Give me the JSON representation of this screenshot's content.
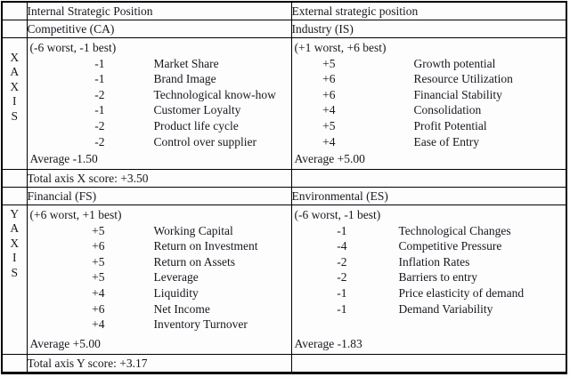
{
  "colors": {
    "border": "#000000",
    "text": "#17171f",
    "background": "#fdfdfd"
  },
  "headers": {
    "internal": "Internal Strategic Position",
    "external": "External strategic position"
  },
  "x_axis": {
    "letters": [
      "X",
      "A",
      "X",
      "I",
      "S"
    ],
    "internal": {
      "name": "Competitive (CA)",
      "scale": "(-6 worst, -1 best)",
      "items": [
        {
          "value": "-1",
          "label": "Market Share"
        },
        {
          "value": "-1",
          "label": "Brand Image"
        },
        {
          "value": "-2",
          "label": "Technological know-how"
        },
        {
          "value": "-1",
          "label": "Customer Loyalty"
        },
        {
          "value": "-2",
          "label": "Product life cycle"
        },
        {
          "value": "-2",
          "label": "Control over supplier"
        }
      ],
      "average": "Average -1.50"
    },
    "external": {
      "name": "Industry (IS)",
      "scale": "(+1 worst, +6 best)",
      "items": [
        {
          "value": "+5",
          "label": "Growth potential"
        },
        {
          "value": "+6",
          "label": "Resource Utilization"
        },
        {
          "value": "+6",
          "label": "Financial Stability"
        },
        {
          "value": "+4",
          "label": "Consolidation"
        },
        {
          "value": "+5",
          "label": "Profit Potential"
        },
        {
          "value": "+4",
          "label": "Ease of Entry"
        }
      ],
      "average": "Average +5.00"
    },
    "total": "Total axis X score: +3.50"
  },
  "y_axis": {
    "letters": [
      "Y",
      "A",
      "X",
      "I",
      "S"
    ],
    "internal": {
      "name": "Financial (FS)",
      "scale": "(+6 worst, +1 best)",
      "items": [
        {
          "value": "+5",
          "label": "Working Capital"
        },
        {
          "value": "+6",
          "label": "Return on Investment"
        },
        {
          "value": "+5",
          "label": "Return on Assets"
        },
        {
          "value": "+5",
          "label": "Leverage"
        },
        {
          "value": "+4",
          "label": "Liquidity"
        },
        {
          "value": "+6",
          "label": "Net Income"
        },
        {
          "value": "+4",
          "label": "Inventory Turnover"
        }
      ],
      "average": "Average +5.00"
    },
    "external": {
      "name": "Environmental (ES)",
      "scale": "(-6 worst, -1 best)",
      "items": [
        {
          "value": "-1",
          "label": "Technological Changes"
        },
        {
          "value": "-4",
          "label": "Competitive Pressure"
        },
        {
          "value": "-2",
          "label": "Inflation Rates"
        },
        {
          "value": "-2",
          "label": "Barriers to entry"
        },
        {
          "value": "-1",
          "label": "Price elasticity of demand"
        },
        {
          "value": "-1",
          "label": "Demand Variability"
        }
      ],
      "average": "Average -1.83"
    },
    "total": "Total axis Y score: +3.17"
  }
}
